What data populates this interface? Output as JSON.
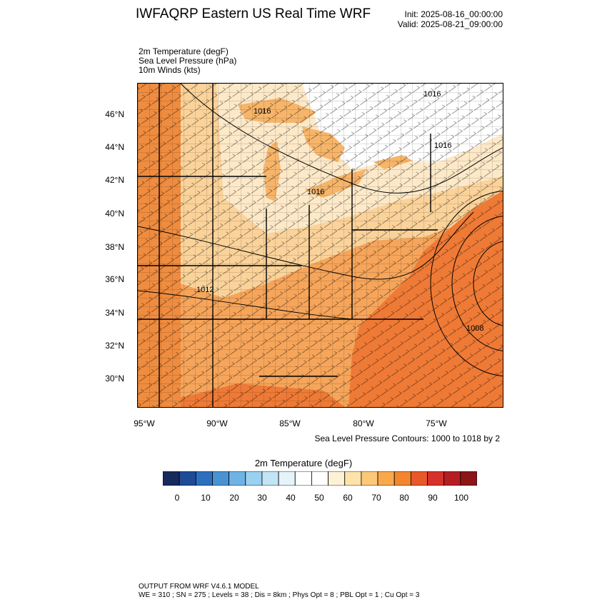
{
  "header": {
    "title": "IWFAQRP Eastern US Real Time WRF",
    "init": "Init: 2025-08-16_00:00:00",
    "valid": "Valid: 2025-08-21_09:00:00"
  },
  "fields": [
    "2m Temperature   (degF)",
    "Sea Level Pressure   (hPa)",
    "10m Winds   (kts)"
  ],
  "map": {
    "lat_labels": [
      "46°N",
      "44°N",
      "42°N",
      "40°N",
      "38°N",
      "36°N",
      "34°N",
      "32°N",
      "30°N"
    ],
    "lon_labels": [
      "95°W",
      "90°W",
      "85°W",
      "80°W",
      "75°W"
    ],
    "isobar_labels": [
      "1016",
      "1016",
      "1016",
      "1016",
      "1012",
      "1008"
    ],
    "colors": {
      "land_warm": "#f6a55a",
      "land_hot": "#ef8c3f",
      "land_mild": "#fbd39a",
      "land_cool": "#fde9c8",
      "land_white": "#ffffff",
      "ocean": "#ee7a36",
      "lake": "#f7b56a"
    }
  },
  "contour_note": "Sea Level Pressure Contours: 1000 to 1018 by 2",
  "colorbar": {
    "title": "2m Temperature  (degF)",
    "colors": [
      "#172a5c",
      "#1f4a95",
      "#2d6fbe",
      "#4a93d2",
      "#6fb3e4",
      "#9ad0f0",
      "#c2e4f6",
      "#e5f3fb",
      "#ffffff",
      "#ffffff",
      "#fdf2d6",
      "#fde3aa",
      "#fcc877",
      "#f9a94c",
      "#f4852f",
      "#e9582b",
      "#d4322b",
      "#b61d23",
      "#8c1518"
    ],
    "ticks": [
      "0",
      "10",
      "20",
      "30",
      "40",
      "50",
      "60",
      "70",
      "80",
      "90",
      "100"
    ]
  },
  "footer": {
    "line1": "OUTPUT FROM WRF V4.6.1 MODEL",
    "line2": "WE = 310 ; SN = 275 ; Levels = 38 ; Dis = 8km ; Phys Opt = 8 ; PBL Opt = 1 ; Cu Opt = 3"
  }
}
